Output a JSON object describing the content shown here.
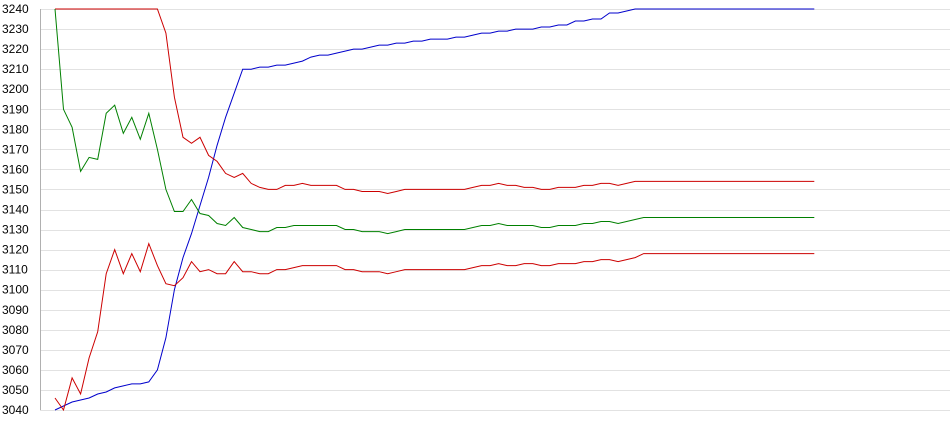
{
  "chart_data": {
    "type": "line",
    "title": "",
    "xlabel": "",
    "ylabel": "",
    "ylim": [
      3040,
      3240
    ],
    "ytick_step": 10,
    "y_ticks": [
      "3240",
      "3230",
      "3220",
      "3210",
      "3200",
      "3190",
      "3180",
      "3170",
      "3160",
      "3150",
      "3140",
      "3130",
      "3120",
      "3110",
      "3100",
      "3090",
      "3080",
      "3070",
      "3060",
      "3050",
      "3040"
    ],
    "x": [
      1,
      2,
      3,
      4,
      5,
      6,
      7,
      8,
      9,
      10,
      11,
      12,
      13,
      14,
      15,
      16,
      17,
      18,
      19,
      20,
      21,
      22,
      23,
      24,
      25,
      26,
      27,
      28,
      29,
      30,
      31,
      32,
      33,
      34,
      35,
      36,
      37,
      38,
      39,
      40,
      41,
      42,
      43,
      44,
      45,
      46,
      47,
      48,
      49,
      50,
      51,
      52,
      53,
      54,
      55,
      56,
      57,
      58,
      59,
      60,
      61,
      62,
      63,
      64,
      65,
      66,
      67,
      68,
      69,
      70,
      71,
      72,
      73,
      74,
      75,
      76,
      77,
      78,
      79,
      80,
      81,
      82,
      83,
      84,
      85,
      86,
      87,
      88,
      89,
      90
    ],
    "grid": true,
    "legend": "none",
    "series": [
      {
        "color": "#0000cc",
        "values": [
          3040,
          3042,
          3044,
          3045,
          3046,
          3048,
          3049,
          3051,
          3052,
          3053,
          3053,
          3054,
          3060,
          3076,
          3100,
          3116,
          3128,
          3142,
          3156,
          3172,
          3186,
          3198,
          3210,
          3210,
          3211,
          3211,
          3212,
          3212,
          3213,
          3214,
          3216,
          3217,
          3217,
          3218,
          3219,
          3220,
          3220,
          3221,
          3222,
          3222,
          3223,
          3223,
          3224,
          3224,
          3225,
          3225,
          3225,
          3226,
          3226,
          3227,
          3228,
          3228,
          3229,
          3229,
          3230,
          3230,
          3230,
          3231,
          3231,
          3232,
          3232,
          3234,
          3234,
          3235,
          3235,
          3238,
          3238,
          3239,
          3240,
          3240,
          3240,
          3240,
          3240,
          3240,
          3240,
          3240,
          3240,
          3240,
          3240,
          3240,
          3240,
          3240,
          3240,
          3240,
          3240,
          3240,
          3240,
          3240,
          3240,
          3240
        ]
      },
      {
        "color": "#cc0000",
        "values": [
          3240,
          3240,
          3240,
          3240,
          3240,
          3240,
          3240,
          3240,
          3240,
          3240,
          3240,
          3240,
          3240,
          3228,
          3196,
          3176,
          3173,
          3176,
          3167,
          3164,
          3158,
          3156,
          3158,
          3153,
          3151,
          3150,
          3150,
          3152,
          3152,
          3153,
          3152,
          3152,
          3152,
          3152,
          3150,
          3150,
          3149,
          3149,
          3149,
          3148,
          3149,
          3150,
          3150,
          3150,
          3150,
          3150,
          3150,
          3150,
          3150,
          3151,
          3152,
          3152,
          3153,
          3152,
          3152,
          3151,
          3151,
          3150,
          3150,
          3151,
          3151,
          3151,
          3152,
          3152,
          3153,
          3153,
          3152,
          3153,
          3154,
          3154,
          3154,
          3154,
          3154,
          3154,
          3154,
          3154,
          3154,
          3154,
          3154,
          3154,
          3154,
          3154,
          3154,
          3154,
          3154,
          3154,
          3154,
          3154,
          3154,
          3154
        ]
      },
      {
        "color": "#008000",
        "values": [
          3240,
          3190,
          3181,
          3159,
          3166,
          3165,
          3188,
          3192,
          3178,
          3186,
          3175,
          3188,
          3170,
          3150,
          3139,
          3139,
          3145,
          3138,
          3137,
          3133,
          3132,
          3136,
          3131,
          3130,
          3129,
          3129,
          3131,
          3131,
          3132,
          3132,
          3132,
          3132,
          3132,
          3132,
          3130,
          3130,
          3129,
          3129,
          3129,
          3128,
          3129,
          3130,
          3130,
          3130,
          3130,
          3130,
          3130,
          3130,
          3130,
          3131,
          3132,
          3132,
          3133,
          3132,
          3132,
          3132,
          3132,
          3131,
          3131,
          3132,
          3132,
          3132,
          3133,
          3133,
          3134,
          3134,
          3133,
          3134,
          3135,
          3136,
          3136,
          3136,
          3136,
          3136,
          3136,
          3136,
          3136,
          3136,
          3136,
          3136,
          3136,
          3136,
          3136,
          3136,
          3136,
          3136,
          3136,
          3136,
          3136,
          3136
        ]
      },
      {
        "color": "#cc0000",
        "values": [
          3046,
          3040,
          3056,
          3048,
          3066,
          3079,
          3108,
          3120,
          3108,
          3118,
          3109,
          3123,
          3112,
          3103,
          3102,
          3106,
          3114,
          3109,
          3110,
          3108,
          3108,
          3114,
          3109,
          3109,
          3108,
          3108,
          3110,
          3110,
          3111,
          3112,
          3112,
          3112,
          3112,
          3112,
          3110,
          3110,
          3109,
          3109,
          3109,
          3108,
          3109,
          3110,
          3110,
          3110,
          3110,
          3110,
          3110,
          3110,
          3110,
          3111,
          3112,
          3112,
          3113,
          3112,
          3112,
          3113,
          3113,
          3112,
          3112,
          3113,
          3113,
          3113,
          3114,
          3114,
          3115,
          3115,
          3114,
          3115,
          3116,
          3118,
          3118,
          3118,
          3118,
          3118,
          3118,
          3118,
          3118,
          3118,
          3118,
          3118,
          3118,
          3118,
          3118,
          3118,
          3118,
          3118,
          3118,
          3118,
          3118,
          3118
        ]
      }
    ]
  }
}
